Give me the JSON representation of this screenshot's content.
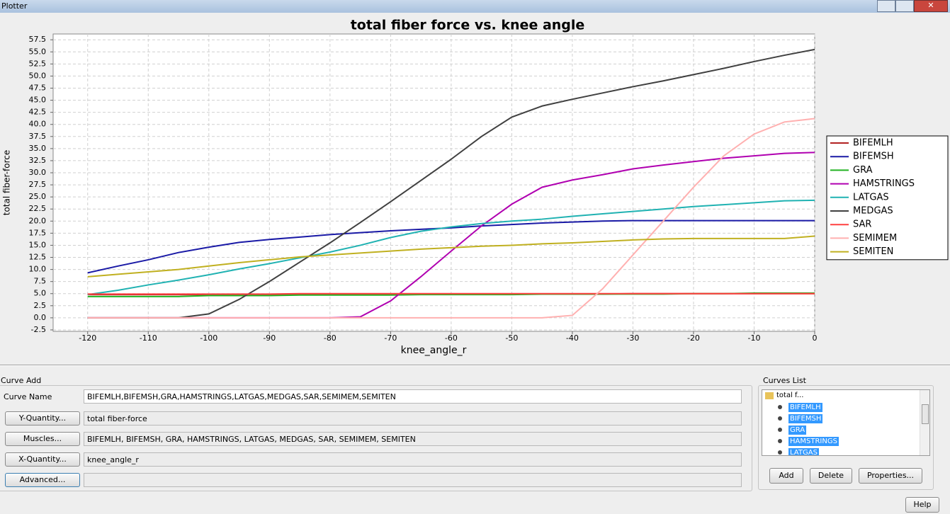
{
  "window": {
    "title": "Plotter"
  },
  "chart_data": {
    "type": "line",
    "title": "total fiber force vs. knee angle",
    "x_label": "knee_angle_r",
    "y_label": "total fiber-force",
    "x": [
      -120,
      -115,
      -110,
      -105,
      -100,
      -95,
      -90,
      -85,
      -80,
      -75,
      -70,
      -65,
      -60,
      -55,
      -50,
      -45,
      -40,
      -35,
      -30,
      -25,
      -20,
      -15,
      -10,
      -5,
      0
    ],
    "series": [
      {
        "name": "BIFEMLH",
        "color": "#b22222",
        "values": [
          4.8,
          4.8,
          4.8,
          4.8,
          4.8,
          4.8,
          4.8,
          4.9,
          4.9,
          4.9,
          4.9,
          4.9,
          4.9,
          4.9,
          4.9,
          4.9,
          4.9,
          4.9,
          5.0,
          5.0,
          5.0,
          5.0,
          5.0,
          5.0,
          5.0
        ]
      },
      {
        "name": "BIFEMSH",
        "color": "#1a1aa6",
        "values": [
          9.3,
          10.7,
          12.0,
          13.5,
          14.6,
          15.6,
          16.2,
          16.7,
          17.2,
          17.6,
          18.0,
          18.3,
          18.6,
          19.0,
          19.3,
          19.6,
          19.8,
          20.0,
          20.1,
          20.1,
          20.1,
          20.1,
          20.1,
          20.1,
          20.1
        ]
      },
      {
        "name": "GRA",
        "color": "#22b222",
        "values": [
          4.4,
          4.4,
          4.4,
          4.4,
          4.6,
          4.6,
          4.6,
          4.7,
          4.7,
          4.7,
          4.7,
          4.8,
          4.8,
          4.8,
          4.8,
          4.9,
          4.9,
          4.9,
          4.9,
          4.9,
          5.0,
          5.0,
          5.1,
          5.1,
          5.1
        ]
      },
      {
        "name": "HAMSTRINGS",
        "color": "#b000b0",
        "values": [
          0,
          0,
          0,
          0,
          0,
          0,
          0,
          0,
          0,
          0.2,
          3.5,
          8.5,
          13.8,
          19.0,
          23.5,
          27.0,
          28.5,
          29.6,
          30.8,
          31.6,
          32.3,
          33.0,
          33.5,
          34.0,
          34.2
        ]
      },
      {
        "name": "LATGAS",
        "color": "#20b2b2",
        "values": [
          4.8,
          5.7,
          6.8,
          7.8,
          8.9,
          10.1,
          11.2,
          12.4,
          13.6,
          15.0,
          16.6,
          17.9,
          18.8,
          19.5,
          20.0,
          20.4,
          21.0,
          21.5,
          22.0,
          22.5,
          23.0,
          23.4,
          23.8,
          24.2,
          24.3
        ]
      },
      {
        "name": "MEDGAS",
        "color": "#404040",
        "values": [
          0,
          0,
          0,
          0,
          0.8,
          3.8,
          7.5,
          11.5,
          15.5,
          19.7,
          24.0,
          28.4,
          32.8,
          37.5,
          41.5,
          43.8,
          45.2,
          46.5,
          47.8,
          49.0,
          50.3,
          51.6,
          53.0,
          54.3,
          55.5
        ]
      },
      {
        "name": "SAR",
        "color": "#ff4040",
        "values": [
          4.9,
          4.9,
          4.9,
          4.9,
          4.9,
          4.9,
          4.9,
          5.0,
          5.0,
          5.0,
          5.0,
          5.0,
          5.0,
          5.0,
          5.0,
          5.0,
          5.0,
          5.0,
          5.0,
          5.0,
          5.0,
          5.0,
          5.0,
          5.0,
          5.0
        ]
      },
      {
        "name": "SEMIMEM",
        "color": "#ffb0b0",
        "values": [
          0,
          0,
          0,
          0,
          0,
          0,
          0,
          0,
          0,
          0,
          0,
          0,
          0,
          0,
          0,
          0,
          0.5,
          6.0,
          13.0,
          20.0,
          27.0,
          33.5,
          38.0,
          40.5,
          41.2
        ]
      },
      {
        "name": "SEMITEN",
        "color": "#c0b020",
        "values": [
          8.5,
          9.0,
          9.5,
          10.0,
          10.7,
          11.4,
          12.0,
          12.6,
          13.0,
          13.4,
          13.8,
          14.2,
          14.5,
          14.8,
          15.0,
          15.3,
          15.5,
          15.8,
          16.1,
          16.3,
          16.4,
          16.4,
          16.4,
          16.4,
          16.9
        ]
      }
    ],
    "xlim": [
      -125.7,
      0
    ],
    "ylim": [
      -2.8,
      58.7
    ],
    "xticks": [
      -120,
      -110,
      -100,
      -90,
      -80,
      -70,
      -60,
      -50,
      -40,
      -30,
      -20,
      -10,
      0
    ],
    "yticks": [
      -2.5,
      {
        "value": 0,
        "label": "0.0"
      },
      2.5,
      {
        "value": 5,
        "label": "5.0"
      },
      7.5,
      {
        "value": 10,
        "label": "10.0"
      },
      12.5,
      {
        "value": 15,
        "label": "15.0"
      },
      17.5,
      {
        "value": 20,
        "label": "20.0"
      },
      22.5,
      {
        "value": 25,
        "label": "25.0"
      },
      27.5,
      {
        "value": 30,
        "label": "30.0"
      },
      32.5,
      {
        "value": 35,
        "label": "35.0"
      },
      37.5,
      {
        "value": 40,
        "label": "40.0"
      },
      42.5,
      {
        "value": 45,
        "label": "45.0"
      },
      47.5,
      {
        "value": 50,
        "label": "50.0"
      },
      52.5,
      {
        "value": 55,
        "label": "55.0"
      },
      57.5
    ],
    "grid": true,
    "legend": "right"
  },
  "curve_add": {
    "title": "Curve Add",
    "curve_name_label": "Curve Name",
    "curve_name": "BIFEMLH,BIFEMSH,GRA,HAMSTRINGS,LATGAS,MEDGAS,SAR,SEMIMEM,SEMITEN",
    "y_button": "Y-Quantity...",
    "y_value": "total fiber-force",
    "muscles_button": "Muscles...",
    "muscles_value": "BIFEMLH, BIFEMSH, GRA, HAMSTRINGS, LATGAS, MEDGAS, SAR, SEMIMEM, SEMITEN",
    "x_button": "X-Quantity...",
    "x_value": "knee_angle_r",
    "advanced_button": "Advanced..."
  },
  "curves_list": {
    "title": "Curves List",
    "root": "total f...",
    "items": [
      "BIFEMLH",
      "BIFEMSH",
      "GRA",
      "HAMSTRINGS",
      "LATGAS"
    ]
  },
  "buttons": {
    "add": "Add",
    "delete": "Delete",
    "properties": "Properties...",
    "help": "Help"
  }
}
